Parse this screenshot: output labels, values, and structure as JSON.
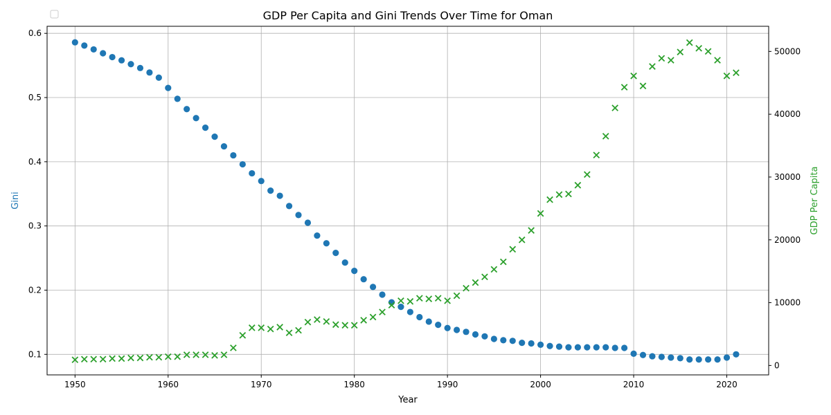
{
  "chart_data": {
    "type": "scatter",
    "title": "GDP Per Capita and Gini Trends Over Time for Oman",
    "xlabel": "Year",
    "ylabel_left": "Gini",
    "ylabel_right": "GDP Per Capita",
    "xlim": [
      1947,
      2024.5
    ],
    "ylim_left": [
      0.068,
      0.611
    ],
    "ylim_right": [
      -1500,
      54000
    ],
    "x_ticks": [
      1950,
      1960,
      1970,
      1980,
      1990,
      2000,
      2010,
      2020
    ],
    "y_left_ticks": [
      0.1,
      0.2,
      0.3,
      0.4,
      0.5,
      0.6
    ],
    "y_right_ticks": [
      0,
      10000,
      20000,
      30000,
      40000,
      50000
    ],
    "grid": true,
    "legend_placement": "upper-left",
    "colors": {
      "gini": "#1f77b4",
      "gdp": "#2ca02c"
    },
    "series": [
      {
        "key": "gini",
        "axis": "left",
        "marker": "circle",
        "x": [
          1950,
          1951,
          1952,
          1953,
          1954,
          1955,
          1956,
          1957,
          1958,
          1959,
          1960,
          1961,
          1962,
          1963,
          1964,
          1965,
          1966,
          1967,
          1968,
          1969,
          1970,
          1971,
          1972,
          1973,
          1974,
          1975,
          1976,
          1977,
          1978,
          1979,
          1980,
          1981,
          1982,
          1983,
          1984,
          1985,
          1986,
          1987,
          1988,
          1989,
          1990,
          1991,
          1992,
          1993,
          1994,
          1995,
          1996,
          1997,
          1998,
          1999,
          2000,
          2001,
          2002,
          2003,
          2004,
          2005,
          2006,
          2007,
          2008,
          2009,
          2010,
          2011,
          2012,
          2013,
          2014,
          2015,
          2016,
          2017,
          2018,
          2019,
          2020,
          2021
        ],
        "values": [
          0.586,
          0.581,
          0.575,
          0.569,
          0.563,
          0.558,
          0.552,
          0.546,
          0.539,
          0.531,
          0.515,
          0.498,
          0.482,
          0.468,
          0.453,
          0.439,
          0.424,
          0.41,
          0.396,
          0.382,
          0.37,
          0.355,
          0.347,
          0.331,
          0.317,
          0.305,
          0.285,
          0.273,
          0.258,
          0.243,
          0.23,
          0.217,
          0.205,
          0.193,
          0.181,
          0.174,
          0.166,
          0.158,
          0.151,
          0.146,
          0.141,
          0.138,
          0.135,
          0.131,
          0.128,
          0.124,
          0.122,
          0.121,
          0.118,
          0.117,
          0.115,
          0.113,
          0.112,
          0.111,
          0.111,
          0.111,
          0.111,
          0.111,
          0.11,
          0.11,
          0.101,
          0.099,
          0.097,
          0.096,
          0.095,
          0.094,
          0.092,
          0.092,
          0.092,
          0.092,
          0.095,
          0.1
        ]
      },
      {
        "key": "gdp",
        "axis": "right",
        "marker": "x",
        "x": [
          1950,
          1951,
          1952,
          1953,
          1954,
          1955,
          1956,
          1957,
          1958,
          1959,
          1960,
          1961,
          1962,
          1963,
          1964,
          1965,
          1966,
          1967,
          1968,
          1969,
          1970,
          1971,
          1972,
          1973,
          1974,
          1975,
          1976,
          1977,
          1978,
          1979,
          1980,
          1981,
          1982,
          1983,
          1984,
          1985,
          1986,
          1987,
          1988,
          1989,
          1990,
          1991,
          1992,
          1993,
          1994,
          1995,
          1996,
          1997,
          1998,
          1999,
          2000,
          2001,
          2002,
          2003,
          2004,
          2005,
          2006,
          2007,
          2008,
          2009,
          2010,
          2011,
          2012,
          2013,
          2014,
          2015,
          2016,
          2017,
          2018,
          2019,
          2020,
          2021
        ],
        "values": [
          900,
          1000,
          1000,
          1000,
          1100,
          1100,
          1200,
          1200,
          1300,
          1300,
          1400,
          1400,
          1700,
          1700,
          1700,
          1600,
          1700,
          2800,
          4800,
          6000,
          6000,
          5800,
          6100,
          5200,
          5600,
          6900,
          7300,
          7000,
          6500,
          6400,
          6400,
          7200,
          7700,
          8500,
          9600,
          10300,
          10200,
          10700,
          10600,
          10700,
          10300,
          11100,
          12300,
          13200,
          14100,
          15300,
          16500,
          18500,
          20000,
          21500,
          24200,
          26400,
          27200,
          27300,
          28700,
          30400,
          33500,
          36500,
          41000,
          44300,
          46100,
          44500,
          47600,
          48900,
          48600,
          49900,
          51400,
          50500,
          50000,
          48600,
          46100,
          46600
        ]
      }
    ]
  }
}
